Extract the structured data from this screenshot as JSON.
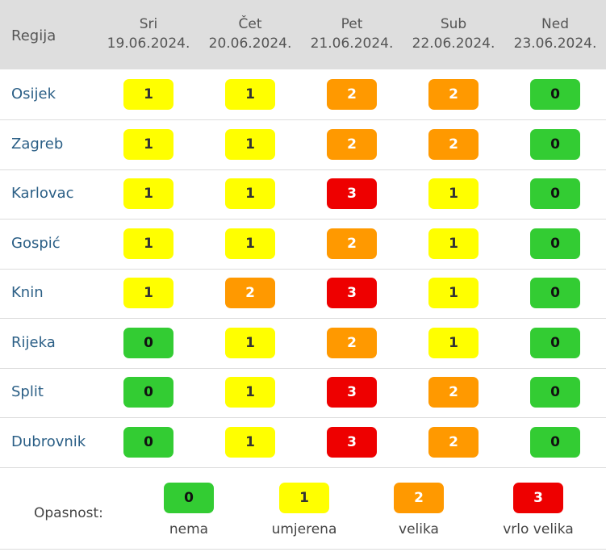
{
  "header": {
    "region_label": "Regija",
    "days": [
      {
        "name": "Sri",
        "date": "19.06.2024."
      },
      {
        "name": "Čet",
        "date": "20.06.2024."
      },
      {
        "name": "Pet",
        "date": "21.06.2024."
      },
      {
        "name": "Sub",
        "date": "22.06.2024."
      },
      {
        "name": "Ned",
        "date": "23.06.2024."
      }
    ]
  },
  "rows": [
    {
      "region": "Osijek",
      "levels": [
        "1",
        "1",
        "2",
        "2",
        "0"
      ]
    },
    {
      "region": "Zagreb",
      "levels": [
        "1",
        "1",
        "2",
        "2",
        "0"
      ]
    },
    {
      "region": "Karlovac",
      "levels": [
        "1",
        "1",
        "3",
        "1",
        "0"
      ]
    },
    {
      "region": "Gospić",
      "levels": [
        "1",
        "1",
        "2",
        "1",
        "0"
      ]
    },
    {
      "region": "Knin",
      "levels": [
        "1",
        "2",
        "3",
        "1",
        "0"
      ]
    },
    {
      "region": "Rijeka",
      "levels": [
        "0",
        "1",
        "2",
        "1",
        "0"
      ]
    },
    {
      "region": "Split",
      "levels": [
        "0",
        "1",
        "3",
        "2",
        "0"
      ]
    },
    {
      "region": "Dubrovnik",
      "levels": [
        "0",
        "1",
        "3",
        "2",
        "0"
      ]
    }
  ],
  "legend": {
    "title": "Opasnost:",
    "items": [
      {
        "value": "0",
        "label": "nema"
      },
      {
        "value": "1",
        "label": "umjerena"
      },
      {
        "value": "2",
        "label": "velika"
      },
      {
        "value": "3",
        "label": "vrlo velika"
      }
    ]
  },
  "colors": {
    "level_0": "#33cc33",
    "level_1": "#ffff00",
    "level_2": "#ff9900",
    "level_3": "#ee0000",
    "header_bg": "#dedede",
    "region_link": "#2b5f86"
  }
}
